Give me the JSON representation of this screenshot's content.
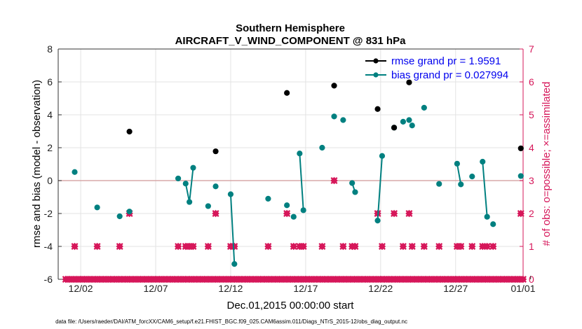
{
  "chart_data": {
    "type": "line",
    "title_line1": "Southern Hemisphere",
    "title_line2": "AIRCRAFT_V_WIND_COMPONENT @ 831 hPa",
    "xlabel": "Dec.01,2015 00:00:00 start",
    "ylabel": "rmse and bias (model - observation)",
    "y2label": "# of obs: o=possible; ×=assimilated",
    "footnote": "data file: /Users/raeder/DAI/ATM_forcXX/CAM6_setup/f.e21.FHIST_BGC.f09_025.CAM6assim.011/Diags_NTrS_2015-12/obs_diag_output.nc",
    "xlim": [
      0.5,
      31.5
    ],
    "ylim": [
      -6,
      8
    ],
    "y2lim": [
      0,
      7
    ],
    "yticks": [
      "8",
      "6",
      "4",
      "2",
      "0",
      "-2",
      "-4",
      "-6"
    ],
    "y2ticks": [
      "7",
      "6",
      "5",
      "4",
      "3",
      "2",
      "1",
      "0"
    ],
    "xticks": [
      {
        "x": 2,
        "label": "12/02"
      },
      {
        "x": 7,
        "label": "12/07"
      },
      {
        "x": 12,
        "label": "12/12"
      },
      {
        "x": 17,
        "label": "12/17"
      },
      {
        "x": 22,
        "label": "12/22"
      },
      {
        "x": 27,
        "label": "12/27"
      },
      {
        "x": 32,
        "label": "01/01"
      }
    ],
    "legend": [
      {
        "name": "rmse grand pr = 1.9591",
        "color": "#000000"
      },
      {
        "name": "bias grand pr = 0.027994",
        "color": "#008080"
      }
    ],
    "rmse_points": [
      [
        5.25,
        2.98
      ],
      [
        11.0,
        1.78
      ],
      [
        15.75,
        5.33
      ],
      [
        18.9,
        5.77
      ],
      [
        21.8,
        4.35
      ],
      [
        22.9,
        3.22
      ],
      [
        23.9,
        5.97
      ],
      [
        31.35,
        1.96
      ]
    ],
    "bias_segments": [
      [
        [
          1.6,
          0.52
        ]
      ],
      [
        [
          3.1,
          -1.63
        ]
      ],
      [
        [
          4.6,
          -2.17
        ]
      ],
      [
        [
          5.25,
          -1.88
        ]
      ],
      [
        [
          8.5,
          0.13
        ]
      ],
      [
        [
          9.0,
          -0.18
        ],
        [
          9.25,
          -1.3
        ],
        [
          9.5,
          0.78
        ]
      ],
      [
        [
          10.5,
          -1.55
        ]
      ],
      [
        [
          11.0,
          -0.35
        ]
      ],
      [
        [
          12.0,
          -0.83
        ],
        [
          12.25,
          -5.07
        ]
      ],
      [
        [
          14.5,
          -1.1
        ]
      ],
      [
        [
          15.75,
          -1.5
        ]
      ],
      [
        [
          16.2,
          -2.2
        ]
      ],
      [
        [
          16.6,
          1.65
        ],
        [
          16.85,
          -1.8
        ]
      ],
      [
        [
          18.1,
          2.0
        ]
      ],
      [
        [
          18.9,
          3.9
        ]
      ],
      [
        [
          19.5,
          3.68
        ]
      ],
      [
        [
          20.1,
          -0.15
        ],
        [
          20.3,
          -0.7
        ]
      ],
      [
        [
          21.8,
          -2.43
        ],
        [
          22.1,
          1.5
        ]
      ],
      [
        [
          22.9,
          3.22
        ]
      ],
      [
        [
          23.5,
          3.58
        ]
      ],
      [
        [
          23.9,
          3.68
        ]
      ],
      [
        [
          24.1,
          3.35
        ]
      ],
      [
        [
          24.9,
          4.43
        ]
      ],
      [
        [
          25.9,
          -0.2
        ]
      ],
      [
        [
          27.1,
          1.03
        ],
        [
          27.35,
          -0.23
        ]
      ],
      [
        [
          28.1,
          0.25
        ]
      ],
      [
        [
          28.8,
          1.15
        ],
        [
          29.1,
          -2.2
        ]
      ],
      [
        [
          29.5,
          -2.65
        ]
      ],
      [
        [
          31.35,
          0.28
        ]
      ]
    ],
    "obs_possible": [
      [
        1.6,
        1
      ],
      [
        3.1,
        1
      ],
      [
        4.6,
        1
      ],
      [
        5.25,
        2
      ],
      [
        8.5,
        1
      ],
      [
        9.0,
        1
      ],
      [
        9.25,
        1
      ],
      [
        9.5,
        1
      ],
      [
        10.5,
        1
      ],
      [
        11.0,
        2
      ],
      [
        12.0,
        1
      ],
      [
        12.25,
        1
      ],
      [
        14.5,
        1
      ],
      [
        15.75,
        2
      ],
      [
        16.2,
        1
      ],
      [
        16.6,
        1
      ],
      [
        16.85,
        1
      ],
      [
        18.1,
        1
      ],
      [
        18.9,
        3
      ],
      [
        19.5,
        1
      ],
      [
        20.1,
        1
      ],
      [
        20.3,
        1
      ],
      [
        21.8,
        2
      ],
      [
        22.1,
        1
      ],
      [
        22.9,
        2
      ],
      [
        23.5,
        1
      ],
      [
        23.9,
        2
      ],
      [
        24.1,
        1
      ],
      [
        24.9,
        1
      ],
      [
        25.9,
        1
      ],
      [
        27.1,
        1
      ],
      [
        27.35,
        1
      ],
      [
        28.1,
        1
      ],
      [
        28.8,
        1
      ],
      [
        29.1,
        1
      ],
      [
        29.5,
        1
      ],
      [
        31.35,
        2
      ]
    ],
    "obs_assimilated_count": 0,
    "colors": {
      "rmse": "#000000",
      "bias": "#008080",
      "obs": "#d6175a",
      "zero_line": "#d8a8a8",
      "grid": "#e3e3e3"
    }
  }
}
